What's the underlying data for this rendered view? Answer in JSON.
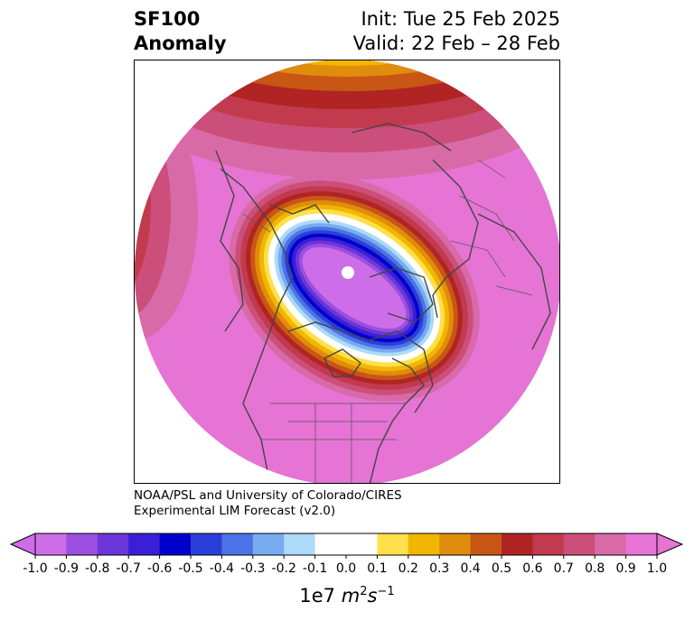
{
  "header": {
    "title_line1": "SF100",
    "title_line2": "Anomaly",
    "init_label": "Init: Tue 25 Feb 2025",
    "valid_label": "Valid: 22 Feb – 28 Feb"
  },
  "credit": {
    "line1": "NOAA/PSL and University of Colorado/CIRES",
    "line2": "Experimental LIM Forecast (v2.0)"
  },
  "chart_data": {
    "type": "heatmap",
    "title": "SF100 Anomaly",
    "projection": "north polar stereographic (circular)",
    "field": "100 hPa streamfunction anomaly",
    "features": [
      {
        "description": "negative anomaly lobe centered over the pole / Canadian Arctic",
        "min_value": -1.0
      },
      {
        "description": "positive anomaly ring surrounding the polar lobe",
        "max_value": 1.0
      }
    ],
    "colorbar": {
      "levels": [
        -1.0,
        -0.9,
        -0.8,
        -0.7,
        -0.6,
        -0.5,
        -0.4,
        -0.3,
        -0.2,
        -0.1,
        0.0,
        0.1,
        0.2,
        0.3,
        0.4,
        0.5,
        0.6,
        0.7,
        0.8,
        0.9,
        1.0
      ],
      "tick_labels": [
        "-1.0",
        "-0.9",
        "-0.8",
        "-0.7",
        "-0.6",
        "-0.5",
        "-0.4",
        "-0.3",
        "-0.2",
        "-0.1",
        "0.0",
        "0.1",
        "0.2",
        "0.3",
        "0.4",
        "0.5",
        "0.6",
        "0.7",
        "0.8",
        "0.9",
        "1.0"
      ],
      "colors": [
        "#cd6ee8",
        "#9c4fe0",
        "#6a36d8",
        "#3a1fd6",
        "#0000cd",
        "#2a3ed8",
        "#4b72e6",
        "#78acf0",
        "#acdaf8",
        "#ffffff",
        "#ffffff",
        "#ffe04a",
        "#f2b600",
        "#e08c0c",
        "#c85614",
        "#b02424",
        "#c13a4e",
        "#cc4e7a",
        "#d96aa8",
        "#e574d4"
      ],
      "extend": "both",
      "unit_prefix": "1e7",
      "unit_m": "m",
      "unit_m_exp": "2",
      "unit_s": "s",
      "unit_s_exp": "−1"
    }
  },
  "colors": {
    "positive_bg": "#e574d4",
    "negative_core": "#cd6ee8",
    "coastline": "#444444"
  }
}
